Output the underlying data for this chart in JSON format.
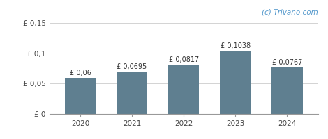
{
  "categories": [
    "2020",
    "2021",
    "2022",
    "2023",
    "2024"
  ],
  "values": [
    0.06,
    0.0695,
    0.0817,
    0.1038,
    0.0767
  ],
  "labels": [
    "£ 0,06",
    "£ 0,0695",
    "£ 0,0817",
    "£ 0,1038",
    "£ 0,0767"
  ],
  "bar_color": "#5f7f90",
  "ylim": [
    0,
    0.16
  ],
  "yticks": [
    0,
    0.05,
    0.1,
    0.15
  ],
  "ytick_labels": [
    "£ 0",
    "£ 0,05",
    "£ 0,1",
    "£ 0,15"
  ],
  "watermark": "(c) Trivano.com",
  "background_color": "#ffffff",
  "grid_color": "#cccccc",
  "label_fontsize": 7,
  "tick_fontsize": 7.5,
  "watermark_fontsize": 7.5,
  "bar_width": 0.6
}
